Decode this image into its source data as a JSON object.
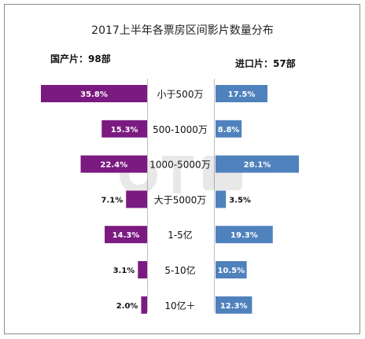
{
  "title": "2017上半年各票房区间影片数量分布",
  "left_header": "国产片：98部",
  "right_header": "进口片：57部",
  "colors": {
    "domestic": "#7b1a80",
    "imported": "#4f81bd"
  },
  "watermark_icon": "brand-logo-watermark",
  "chart_data": {
    "type": "bar",
    "orientation": "horizontal-butterfly",
    "title": "2017上半年各票房区间影片数量分布",
    "categories": [
      "小于500万",
      "500-1000万",
      "1000-5000万",
      "大于5000万",
      "1-5亿",
      "5-10亿",
      "10亿＋"
    ],
    "series": [
      {
        "name": "国产片：98部",
        "values": [
          35.8,
          15.3,
          22.4,
          7.1,
          14.3,
          3.1,
          2.0
        ],
        "labels": [
          "35.8%",
          "15.3%",
          "22.4%",
          "7.1%",
          "14.3%",
          "3.1%",
          "2.0%"
        ]
      },
      {
        "name": "进口片：57部",
        "values": [
          17.5,
          8.8,
          28.1,
          3.5,
          19.3,
          10.5,
          12.3
        ],
        "labels": [
          "17.5%",
          "8.8%",
          "28.1%",
          "3.5%",
          "19.3%",
          "10.5%",
          "12.3%"
        ]
      }
    ],
    "unit": "%",
    "grid": false,
    "legend": "none"
  }
}
